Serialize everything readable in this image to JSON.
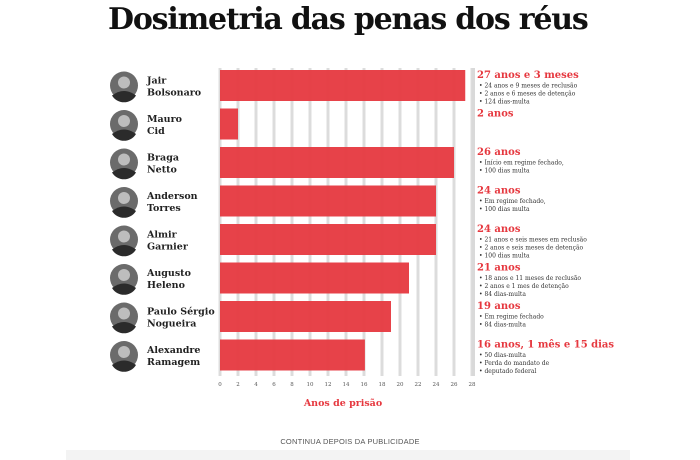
{
  "title": "Dosimetria das penas dos réus",
  "ad_label": "CONTINUA DEPOIS DA PUBLICIDADE",
  "colors": {
    "bar": "#e6383f",
    "accent": "#e6383f",
    "grid": "#dcdcdc",
    "text": "#222222"
  },
  "chart_data": {
    "type": "bar",
    "orientation": "horizontal",
    "title": "Dosimetria das penas dos réus",
    "xlabel": "Anos de prisão",
    "ylabel": "",
    "xlim": [
      0,
      28
    ],
    "xticks": [
      0,
      2,
      4,
      6,
      8,
      10,
      12,
      14,
      16,
      18,
      20,
      22,
      24,
      26,
      28
    ],
    "grid": true,
    "categories": [
      "Jair Bolsonaro",
      "Mauro Cid",
      "Braga Netto",
      "Anderson Torres",
      "Almir Garnier",
      "Augusto Heleno",
      "Paulo Sérgio Nogueira",
      "Alexandre Ramagem"
    ],
    "values": [
      27.25,
      2,
      26,
      24,
      24,
      21,
      19,
      16.1
    ],
    "rows": [
      {
        "name_line1": "Jair",
        "name_line2": "Bolsonaro",
        "value": 27.25,
        "label": "27 anos e 3 meses",
        "details": [
          "24 anos e 9 meses de reclusão",
          "2 anos e 6 meses de detenção",
          "124 dias-multa"
        ]
      },
      {
        "name_line1": "Mauro",
        "name_line2": "Cid",
        "value": 2,
        "label": "2 anos",
        "details": []
      },
      {
        "name_line1": "Braga",
        "name_line2": "Netto",
        "value": 26,
        "label": "26 anos",
        "details": [
          "Início em regime fechado,",
          "100 dias multa"
        ]
      },
      {
        "name_line1": "Anderson",
        "name_line2": "Torres",
        "value": 24,
        "label": "24 anos",
        "details": [
          "Em regime fechado,",
          "100 dias multa"
        ]
      },
      {
        "name_line1": "Almir",
        "name_line2": "Garnier",
        "value": 24,
        "label": "24 anos",
        "details": [
          "21 anos e seis meses em reclusão",
          "2 anos e seis meses de detenção",
          "100 dias multa"
        ]
      },
      {
        "name_line1": "Augusto",
        "name_line2": "Heleno",
        "value": 21,
        "label": "21 anos",
        "details": [
          "18 anos e 11 meses de reclusão",
          "2 anos e 1 mes de detenção",
          "84 dias-multa"
        ]
      },
      {
        "name_line1": "Paulo Sérgio",
        "name_line2": "Nogueira",
        "value": 19,
        "label": "19 anos",
        "details": [
          "Em regime fechado",
          "84 dias-multa"
        ]
      },
      {
        "name_line1": "Alexandre",
        "name_line2": "Ramagem",
        "value": 16.1,
        "label": "16 anos, 1 mês e 15 dias",
        "details": [
          "50 dias-multa",
          "Perda do mandato de",
          "deputado federal"
        ]
      }
    ]
  }
}
